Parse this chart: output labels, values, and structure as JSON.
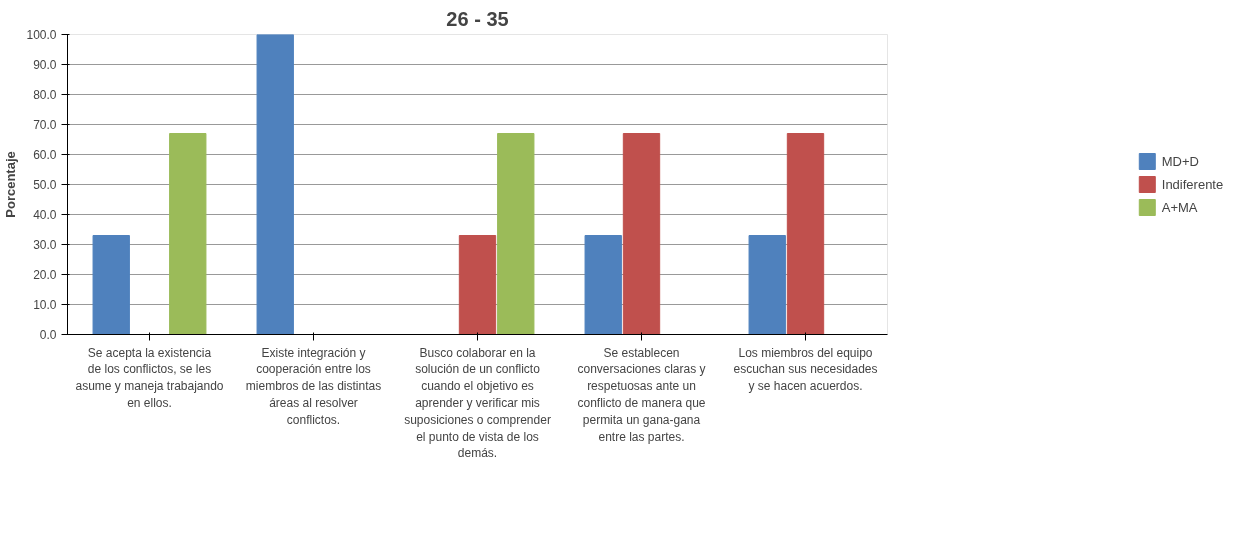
{
  "chart_data": {
    "type": "bar",
    "title": "26 - 35",
    "ylabel": "Porcentaje",
    "categories": [
      "Se acepta la existencia de los conflictos, se les asume y maneja trabajando en ellos.",
      "Existe integración y cooperación entre los miembros de las distintas áreas al resolver conflictos.",
      "Busco colaborar en la solución de un conflicto cuando el objetivo es aprender y verificar mis suposiciones o comprender el punto de vista de los demás.",
      "Se establecen conversaciones claras y respetuosas ante un conflicto de manera que permita un gana-gana entre las partes.",
      "Los miembros del equipo escuchan sus necesidades y se hacen acuerdos."
    ],
    "series": [
      {
        "name": "MD+D",
        "color": "#4f81bd",
        "values": [
          33,
          100,
          0,
          33,
          33
        ]
      },
      {
        "name": "Indiferente",
        "color": "#c0504d",
        "values": [
          0,
          0,
          33,
          67,
          67
        ]
      },
      {
        "name": "A+MA",
        "color": "#9bbb59",
        "values": [
          67,
          0,
          67,
          0,
          0
        ]
      }
    ],
    "ylim": [
      0,
      100
    ],
    "yticks": [
      {
        "value": 0,
        "label": "0.0"
      },
      {
        "value": 10,
        "label": "10.0"
      },
      {
        "value": 20,
        "label": "20.0"
      },
      {
        "value": 30,
        "label": "30.0"
      },
      {
        "value": 40,
        "label": "40.0"
      },
      {
        "value": 50,
        "label": "50.0"
      },
      {
        "value": 60,
        "label": "60.0"
      },
      {
        "value": 70,
        "label": "70.0"
      },
      {
        "value": 80,
        "label": "80.0"
      },
      {
        "value": 90,
        "label": "90.0"
      },
      {
        "value": 100,
        "label": "100.0"
      }
    ],
    "grid": "y",
    "legend": "right"
  }
}
